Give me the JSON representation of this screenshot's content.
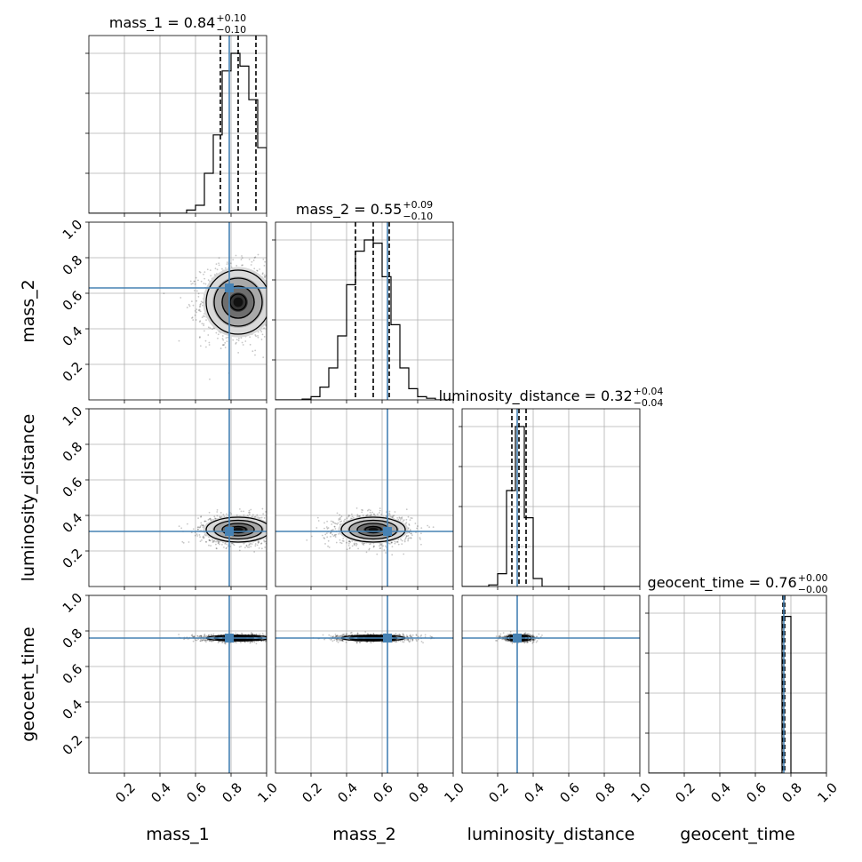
{
  "chart_data": {
    "type": "corner",
    "parameters": [
      "mass_1",
      "mass_2",
      "luminosity_distance",
      "geocent_time"
    ],
    "truths": [
      0.79,
      0.63,
      0.31,
      0.76
    ],
    "truth_color": "#4682b4",
    "range": [
      0,
      1
    ],
    "grid": true,
    "ticks": [
      0.2,
      0.4,
      0.6,
      0.8,
      1.0
    ],
    "tick_labels": [
      "0.2",
      "0.4",
      "0.6",
      "0.8",
      "1.0"
    ],
    "titles": [
      {
        "param": "mass_1",
        "text": "mass_1 = 0.84",
        "plus": "+0.10",
        "minus": "−0.10",
        "quantiles": [
          0.74,
          0.84,
          0.94
        ]
      },
      {
        "param": "mass_2",
        "text": "mass_2 = 0.55",
        "plus": "+0.09",
        "minus": "−0.10",
        "quantiles": [
          0.45,
          0.55,
          0.64
        ]
      },
      {
        "param": "luminosity_distance",
        "text": "luminosity_distance = 0.32",
        "plus": "+0.04",
        "minus": "−0.04",
        "quantiles": [
          0.28,
          0.32,
          0.36
        ]
      },
      {
        "param": "geocent_time",
        "text": "geocent_time = 0.76",
        "plus": "+0.00",
        "minus": "−0.00",
        "quantiles": [
          0.755,
          0.76,
          0.765
        ]
      }
    ],
    "histograms": [
      {
        "param": "mass_1",
        "bins": [
          [
            0.55,
            0.6,
            0.02
          ],
          [
            0.6,
            0.65,
            0.05
          ],
          [
            0.65,
            0.7,
            0.25
          ],
          [
            0.7,
            0.75,
            0.49
          ],
          [
            0.75,
            0.8,
            0.89
          ],
          [
            0.8,
            0.85,
            1.0
          ],
          [
            0.85,
            0.9,
            0.92
          ],
          [
            0.9,
            0.95,
            0.71
          ],
          [
            0.95,
            1.0,
            0.41
          ]
        ]
      },
      {
        "param": "mass_2",
        "bins": [
          [
            0.15,
            0.2,
            0.005
          ],
          [
            0.2,
            0.25,
            0.02
          ],
          [
            0.25,
            0.3,
            0.08
          ],
          [
            0.3,
            0.35,
            0.2
          ],
          [
            0.35,
            0.4,
            0.4
          ],
          [
            0.4,
            0.45,
            0.72
          ],
          [
            0.45,
            0.5,
            0.93
          ],
          [
            0.5,
            0.55,
            1.0
          ],
          [
            0.55,
            0.6,
            0.98
          ],
          [
            0.6,
            0.65,
            0.77
          ],
          [
            0.65,
            0.7,
            0.47
          ],
          [
            0.7,
            0.75,
            0.2
          ],
          [
            0.75,
            0.8,
            0.07
          ],
          [
            0.8,
            0.85,
            0.02
          ],
          [
            0.85,
            0.9,
            0.01
          ]
        ]
      },
      {
        "param": "luminosity_distance",
        "bins": [
          [
            0.15,
            0.2,
            0.01
          ],
          [
            0.2,
            0.25,
            0.08
          ],
          [
            0.25,
            0.3,
            0.6
          ],
          [
            0.3,
            0.35,
            1.0
          ],
          [
            0.35,
            0.4,
            0.43
          ],
          [
            0.4,
            0.45,
            0.05
          ]
        ]
      },
      {
        "param": "geocent_time",
        "bins": [
          [
            0.75,
            0.8,
            0.98
          ],
          [
            0.8,
            0.85,
            0.0
          ]
        ]
      }
    ],
    "posterior_means": [
      0.84,
      0.55,
      0.32,
      0.76
    ],
    "posterior_sigmas": [
      0.09,
      0.09,
      0.035,
      0.008
    ],
    "contour_levels": [
      0.39,
      0.86,
      0.99
    ]
  }
}
